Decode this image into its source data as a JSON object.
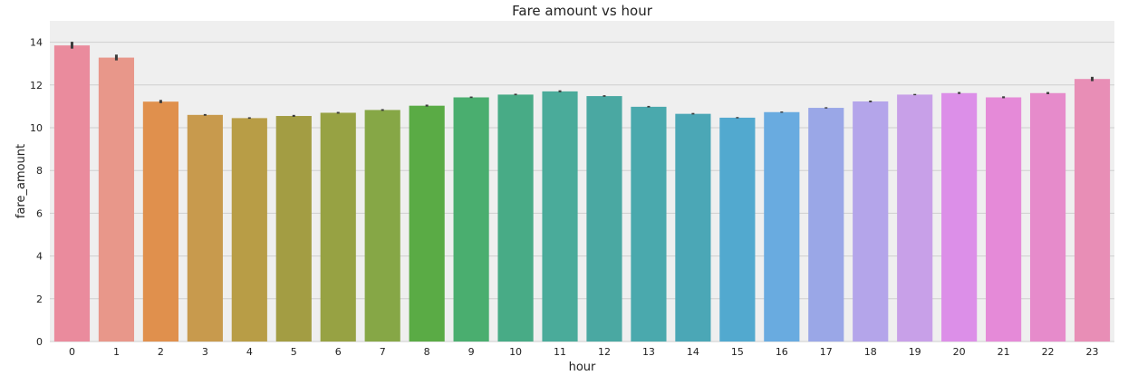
{
  "chart_data": {
    "type": "bar",
    "title": "Fare amount vs hour",
    "xlabel": "hour",
    "ylabel": "fare_amount",
    "ylim": [
      0,
      15
    ],
    "yticks": [
      0,
      2,
      4,
      6,
      8,
      10,
      12,
      14
    ],
    "grid": true,
    "categories": [
      "0",
      "1",
      "2",
      "3",
      "4",
      "5",
      "6",
      "7",
      "8",
      "9",
      "10",
      "11",
      "12",
      "13",
      "14",
      "15",
      "16",
      "17",
      "18",
      "19",
      "20",
      "21",
      "22",
      "23"
    ],
    "values": [
      13.85,
      13.28,
      11.22,
      10.6,
      10.45,
      10.55,
      10.7,
      10.83,
      11.03,
      11.42,
      11.55,
      11.7,
      11.48,
      10.98,
      10.65,
      10.47,
      10.73,
      10.93,
      11.23,
      11.55,
      11.62,
      11.42,
      11.62,
      12.28
    ],
    "error_low": [
      13.7,
      13.15,
      11.15,
      10.56,
      10.42,
      10.51,
      10.66,
      10.79,
      10.99,
      11.39,
      11.52,
      11.66,
      11.45,
      10.95,
      10.62,
      10.44,
      10.7,
      10.9,
      11.19,
      11.52,
      11.58,
      11.38,
      11.57,
      12.18
    ],
    "error_high": [
      14.02,
      13.42,
      11.3,
      10.64,
      10.49,
      10.6,
      10.74,
      10.87,
      11.08,
      11.46,
      11.59,
      11.75,
      11.52,
      11.02,
      10.69,
      10.5,
      10.76,
      10.96,
      11.27,
      11.58,
      11.67,
      11.47,
      11.67,
      12.38
    ],
    "colors": [
      "#ea8b9d",
      "#e8978a",
      "#e0904d",
      "#c89a4d",
      "#b89d46",
      "#a39d43",
      "#97a243",
      "#86a746",
      "#5aab45",
      "#4aae6f",
      "#48ab86",
      "#4aab9a",
      "#4aa8a2",
      "#4aa9ad",
      "#4ba7b6",
      "#52a9cf",
      "#69abe0",
      "#9aa7e7",
      "#b4a5ea",
      "#c8a0e8",
      "#dc8fe8",
      "#e58ad8",
      "#e68bcb",
      "#e88eb6"
    ],
    "plot_background": "#efefef"
  }
}
